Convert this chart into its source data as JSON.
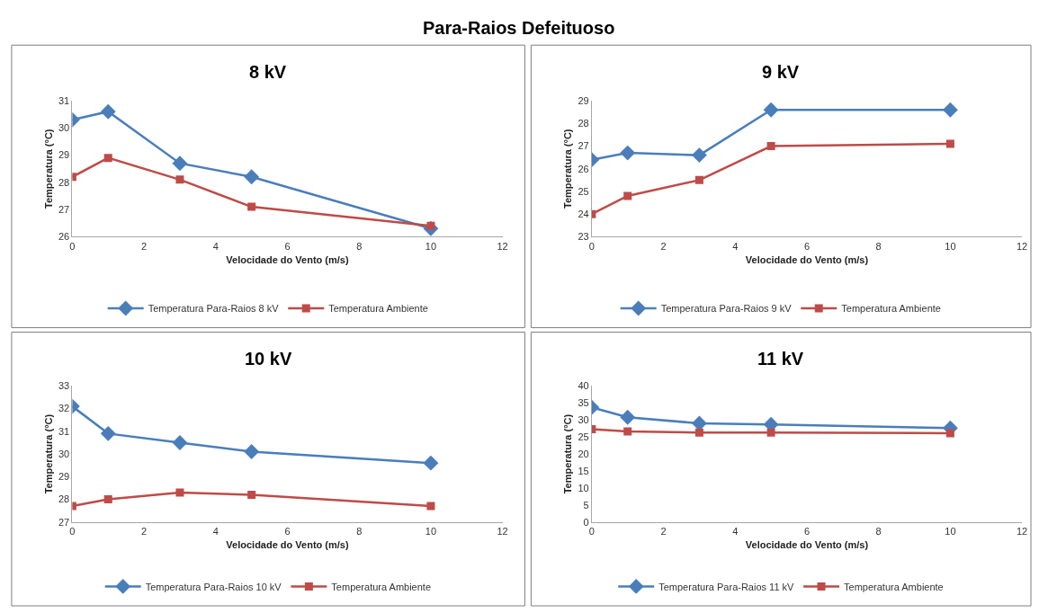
{
  "chart_data": [
    {
      "type": "line",
      "title": "8 kV",
      "annotations": [
        "Para-Raios Defeituoso"
      ],
      "xlabel": "Velocidade do Vento (m/s)",
      "ylabel": "Temperatura (°C)",
      "x": [
        0,
        1,
        3,
        5,
        10
      ],
      "xlim": [
        0,
        12
      ],
      "xticks": [
        0,
        2,
        4,
        6,
        8,
        10,
        12
      ],
      "ylim": [
        26,
        31
      ],
      "yticks": [
        26,
        27,
        28,
        29,
        30,
        31
      ],
      "grid": false,
      "legend": "bottom",
      "series": [
        {
          "name": "Temperatura Para-Raios 8 kV",
          "color": "#4a7ebb",
          "marker": "diamond",
          "values": [
            30.3,
            30.6,
            28.7,
            28.2,
            26.3
          ]
        },
        {
          "name": "Temperatura Ambiente",
          "color": "#be4b48",
          "marker": "square",
          "values": [
            28.2,
            28.9,
            28.1,
            27.1,
            26.4
          ]
        }
      ]
    },
    {
      "type": "line",
      "title": "9 kV",
      "xlabel": "Velocidade do Vento (m/s)",
      "ylabel": "Temperatura (°C)",
      "x": [
        0,
        1,
        3,
        5,
        10
      ],
      "xlim": [
        0,
        12
      ],
      "xticks": [
        0,
        2,
        4,
        6,
        8,
        10,
        12
      ],
      "ylim": [
        23,
        29
      ],
      "yticks": [
        23,
        24,
        25,
        26,
        27,
        28,
        29
      ],
      "grid": false,
      "legend": "bottom",
      "series": [
        {
          "name": "Temperatura Para-Raios 9 kV",
          "color": "#4a7ebb",
          "marker": "diamond",
          "values": [
            26.4,
            26.7,
            26.6,
            28.6,
            28.6
          ]
        },
        {
          "name": "Temperatura Ambiente",
          "color": "#be4b48",
          "marker": "square",
          "values": [
            24.0,
            24.8,
            25.5,
            27.0,
            27.1
          ]
        }
      ]
    },
    {
      "type": "line",
      "title": "10 kV",
      "xlabel": "Velocidade do Vento (m/s)",
      "ylabel": "Temperatura (°C)",
      "x": [
        0,
        1,
        3,
        5,
        10
      ],
      "xlim": [
        0,
        12
      ],
      "xticks": [
        0,
        2,
        4,
        6,
        8,
        10,
        12
      ],
      "ylim": [
        27,
        33
      ],
      "yticks": [
        27,
        28,
        29,
        30,
        31,
        32,
        33
      ],
      "grid": false,
      "legend": "bottom",
      "series": [
        {
          "name": "Temperatura Para-Raios 10 kV",
          "color": "#4a7ebb",
          "marker": "diamond",
          "values": [
            32.1,
            30.9,
            30.5,
            30.1,
            29.6
          ]
        },
        {
          "name": "Temperatura Ambiente",
          "color": "#be4b48",
          "marker": "square",
          "values": [
            27.7,
            28.0,
            28.3,
            28.2,
            27.7
          ]
        }
      ]
    },
    {
      "type": "line",
      "title": "11 kV",
      "xlabel": "Velocidade do Vento (m/s)",
      "ylabel": "Temperatura (°C)",
      "x": [
        0,
        1,
        3,
        5,
        10
      ],
      "xlim": [
        0,
        12
      ],
      "xticks": [
        0,
        2,
        4,
        6,
        8,
        10,
        12
      ],
      "ylim": [
        0,
        40
      ],
      "yticks": [
        0,
        5,
        10,
        15,
        20,
        25,
        30,
        35,
        40
      ],
      "grid": false,
      "legend": "bottom",
      "series": [
        {
          "name": "Temperatura Para-Raios 11 kV",
          "color": "#4a7ebb",
          "marker": "diamond",
          "values": [
            33.7,
            30.8,
            29.0,
            28.7,
            27.6
          ]
        },
        {
          "name": "Temperatura Ambiente",
          "color": "#be4b48",
          "marker": "square",
          "values": [
            27.3,
            26.6,
            26.3,
            26.3,
            26.1
          ]
        }
      ]
    }
  ]
}
